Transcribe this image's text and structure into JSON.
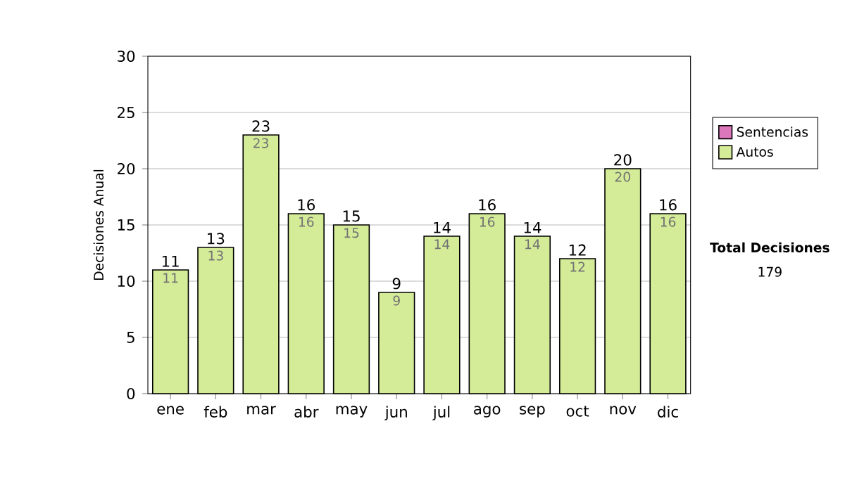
{
  "chart_data": {
    "type": "bar",
    "stacked": true,
    "categories": [
      "ene",
      "feb",
      "mar",
      "abr",
      "may",
      "jun",
      "jul",
      "ago",
      "sep",
      "oct",
      "nov",
      "dic"
    ],
    "series": [
      {
        "name": "Sentencias",
        "color": "#dd77bb",
        "values": [
          0,
          0,
          0,
          0,
          0,
          0,
          0,
          0,
          0,
          0,
          0,
          0
        ]
      },
      {
        "name": "Autos",
        "color": "#d4ec98",
        "values": [
          11,
          13,
          23,
          16,
          15,
          9,
          14,
          16,
          14,
          12,
          20,
          16
        ],
        "value_labels": [
          "11",
          "13",
          "23",
          "16",
          "15",
          "9",
          "14",
          "16",
          "14",
          "12",
          "20",
          "16"
        ]
      }
    ],
    "totals": [
      "11",
      "13",
      "23",
      "16",
      "15",
      "9",
      "14",
      "16",
      "14",
      "12",
      "20",
      "16"
    ],
    "ylabel": "Decisiones Anual",
    "ylim": [
      0,
      30
    ],
    "yticks": [
      0,
      5,
      10,
      15,
      20,
      25,
      30
    ],
    "grid": "y",
    "legend": "right",
    "annotations": [
      "**Total Decisiones**",
      "179"
    ]
  }
}
